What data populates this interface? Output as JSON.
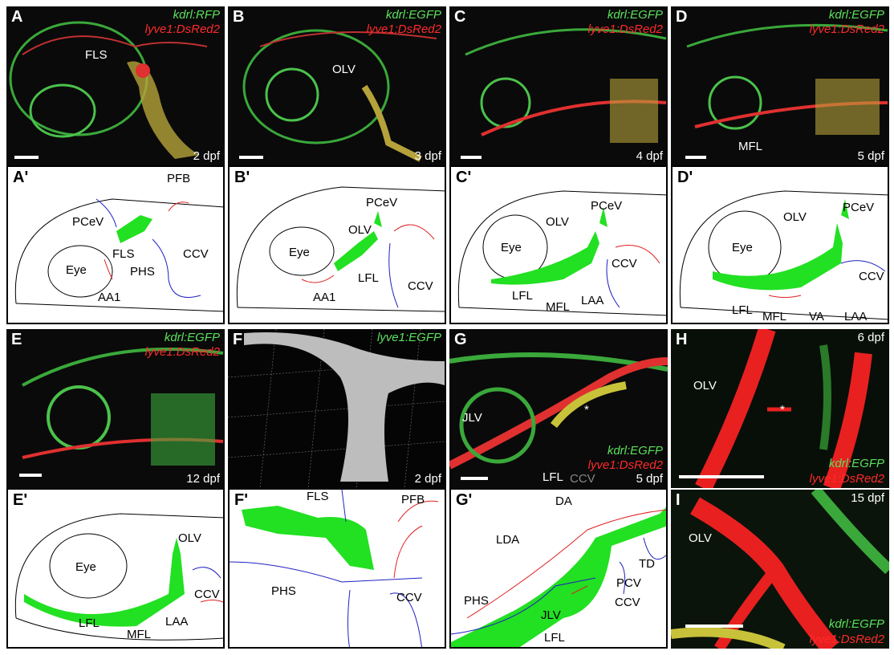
{
  "panels": {
    "A": {
      "label": "A",
      "g1": "kdrl:RFP",
      "g2": "lyve1:DsRed2",
      "stage": "2 dpf",
      "ann": [
        "FLS"
      ]
    },
    "B": {
      "label": "B",
      "g1": "kdrl:EGFP",
      "g2": "lyve1:DsRed2",
      "stage": "3 dpf",
      "ann": [
        "OLV"
      ]
    },
    "C": {
      "label": "C",
      "g1": "kdrl:EGFP",
      "g2": "lyve1:DsRed2",
      "stage": "4 dpf",
      "ann": []
    },
    "D": {
      "label": "D",
      "g1": "kdrl:EGFP",
      "g2": "lyve1:DsRed2",
      "stage": "5 dpf",
      "ann": [
        "MFL"
      ]
    },
    "A2": {
      "label": "A'",
      "ann": [
        "PFB",
        "PCeV",
        "FLS",
        "PHS",
        "Eye",
        "CCV",
        "AA1"
      ]
    },
    "B2": {
      "label": "B'",
      "ann": [
        "PCeV",
        "OLV",
        "Eye",
        "LFL",
        "AA1",
        "CCV"
      ]
    },
    "C2": {
      "label": "C'",
      "ann": [
        "PCeV",
        "OLV",
        "Eye",
        "CCV",
        "LFL",
        "MFL",
        "LAA"
      ]
    },
    "D2": {
      "label": "D'",
      "ann": [
        "OLV",
        "PCeV",
        "Eye",
        "CCV",
        "LFL",
        "MFL",
        "VA",
        "LAA"
      ]
    },
    "E": {
      "label": "E",
      "g1": "kdrl:EGFP",
      "g2": "lyve1:DsRed2",
      "stage": "12 dpf"
    },
    "F": {
      "label": "F",
      "g1": "lyve1:EGFP",
      "stage": "2 dpf"
    },
    "G": {
      "label": "G",
      "g1": "kdrl:EGFP",
      "g2": "lyve1:DsRed2",
      "stage": "5 dpf",
      "ann": [
        "JLV",
        "*",
        "LFL",
        "CCV"
      ]
    },
    "H": {
      "label": "H",
      "g1": "kdrl:EGFP",
      "g2": "lyve1:DsRed2",
      "stage": "6 dpf",
      "ann": [
        "OLV",
        "*"
      ]
    },
    "E2": {
      "label": "E'",
      "ann": [
        "OLV",
        "Eye",
        "CCV",
        "LAA",
        "LFL",
        "MFL"
      ]
    },
    "F2": {
      "label": "F'",
      "ann": [
        "FLS",
        "PFB",
        "PHS",
        "CCV"
      ]
    },
    "G2": {
      "label": "G'",
      "ann": [
        "DA",
        "LDA",
        "TD",
        "PHS",
        "PCV",
        "CCV",
        "JLV",
        "LFL"
      ]
    },
    "I": {
      "label": "I",
      "g1": "kdrl:EGFP",
      "g2": "lyve1:DsRed2",
      "stage": "15 dpf",
      "ann": [
        "OLV"
      ]
    }
  },
  "colors": {
    "green": "#22e022",
    "red": "#e02020",
    "blue": "#2020c0",
    "black": "#000000"
  }
}
